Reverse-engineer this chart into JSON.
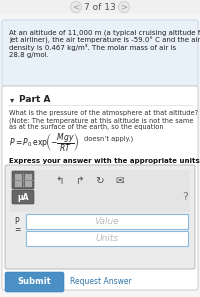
{
  "nav_text": "7 of 13",
  "bg_color": "#f5f5f5",
  "card_bg": "#ffffff",
  "blue_card_bg": "#e8f0f8",
  "blue_card_border": "#c8d8ec",
  "problem_line1": "At an altitude of 11,000 m (a typical cruising altitude for a",
  "problem_line2": "jet airliner), the air temperature is -59.0° C and the air",
  "problem_line3": "density is 0.467 kg/m³. The molar mass of air is",
  "problem_line4": "28.8 g/mol.",
  "part_label": "Part A",
  "q_line1": "What is the pressure of the atmosphere at that altitude?",
  "q_line2": "(Note: The temperature at this altitude is not the same",
  "q_line3": "as at the surface of the earth, so the equation",
  "q_line4": "doesn’t apply.)",
  "express_text": "Express your answer with the appropriate units.",
  "value_placeholder": "Value",
  "units_placeholder": "Units",
  "p_label_top": "P",
  "p_label_bot": "=",
  "submit_text": "Submit",
  "request_text": "Request Answer",
  "submit_bg": "#4a90c4",
  "input_bg": "#ffffff",
  "input_border": "#88bbdd",
  "toolbar_bg": "#e0e0e0",
  "toolbar_inner": "#d8d8d8",
  "icon_dark": "#555555",
  "question_mark": "?",
  "nav_bg": "#f0f0f0",
  "white_card_border": "#cccccc",
  "nav_arrow_color": "#999999",
  "part_area_bg": "#f9f9f9"
}
